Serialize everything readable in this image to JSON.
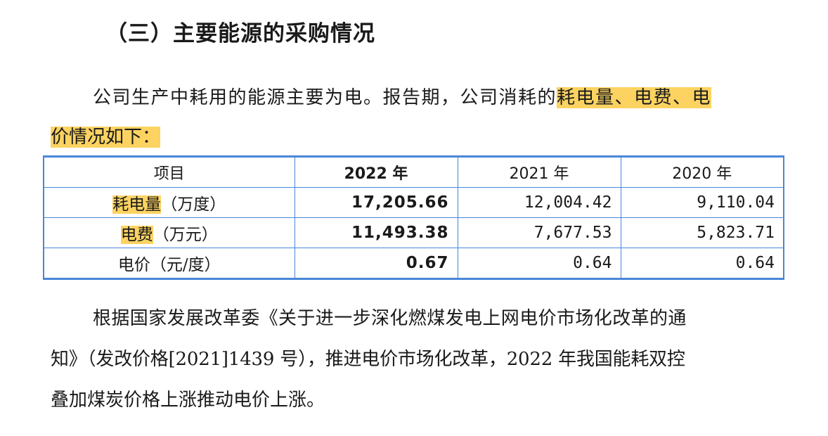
{
  "section": {
    "heading": "（三）主要能源的采购情况"
  },
  "intro": {
    "text_plain": "公司生产中耗用的能源主要为电。报告期，公司消耗的",
    "text_highlight_a": "耗电量、电费、电",
    "text_highlight_b": "价情况如下："
  },
  "table": {
    "headers": [
      "项目",
      "2022 年",
      "2021 年",
      "2020 年"
    ],
    "rows": [
      {
        "label_highlight": "耗电量",
        "label_rest": "（万度）",
        "values": [
          "17,205.66",
          "12,004.42",
          "9,110.04"
        ]
      },
      {
        "label_highlight": "电费",
        "label_rest": "（万元）",
        "values": [
          "11,493.38",
          "7,677.53",
          "5,823.71"
        ]
      },
      {
        "label_highlight": "",
        "label_rest": "电价（元/度）",
        "values": [
          "0.67",
          "0.64",
          "0.64"
        ]
      }
    ]
  },
  "body": {
    "line1": "根据国家发展改革委《关于进一步深化燃煤发电上网电价市场化改革的通",
    "line2": "知》（发改价格[2021]1439 号），推进电价市场化改革，2022 年我国能耗双控",
    "line3": "叠加煤炭价格上涨推动电价上涨。"
  },
  "colors": {
    "highlight": "#fcd361",
    "table_border": "#4a86d8"
  }
}
